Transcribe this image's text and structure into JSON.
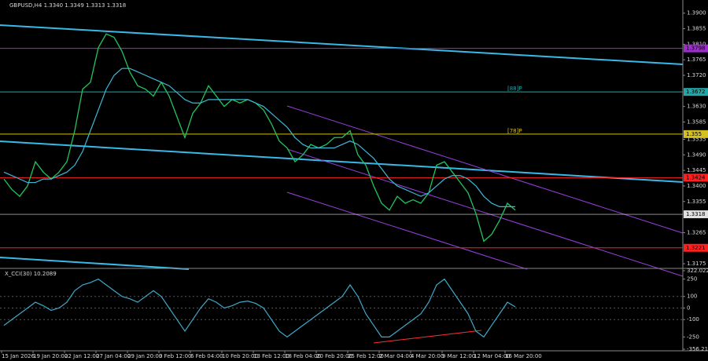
{
  "chart_data": [
    {
      "type": "line",
      "title": "GBPUSD,H4  1.3340 1.3349 1.3313 1.3318",
      "ylim": [
        1.3166,
        1.3938
      ],
      "yticks": [
        {
          "value": 1.39,
          "label": "1.3900"
        },
        {
          "value": 1.3855,
          "label": "1.3855"
        },
        {
          "value": 1.381,
          "label": "1.3810"
        },
        {
          "value": 1.3765,
          "label": "1.3765"
        },
        {
          "value": 1.372,
          "label": "1.3720"
        },
        {
          "value": 1.363,
          "label": "1.3630"
        },
        {
          "value": 1.3585,
          "label": "1.3585"
        },
        {
          "value": 1.3535,
          "label": "1.3535"
        },
        {
          "value": 1.349,
          "label": "1.3490"
        },
        {
          "value": 1.3445,
          "label": "1.3445"
        },
        {
          "value": 1.34,
          "label": "1.3400"
        },
        {
          "value": 1.3355,
          "label": "1.3355"
        },
        {
          "value": 1.3265,
          "label": "1.3265"
        },
        {
          "value": 1.3175,
          "label": "1.3175"
        }
      ],
      "series": [
        {
          "color": "#22c55e",
          "values": [
            1.342,
            1.339,
            1.337,
            1.34,
            1.347,
            1.344,
            1.342,
            1.344,
            1.347,
            1.356,
            1.368,
            1.37,
            1.38,
            1.384,
            1.383,
            1.379,
            1.373,
            1.369,
            1.368,
            1.366,
            1.37,
            1.366,
            1.36,
            1.354,
            1.361,
            1.364,
            1.369,
            1.366,
            1.363,
            1.365,
            1.364,
            1.365,
            1.364,
            1.362,
            1.358,
            1.353,
            1.351,
            1.347,
            1.349,
            1.352,
            1.351,
            1.352,
            1.354,
            1.354,
            1.356,
            1.349,
            1.346,
            1.34,
            1.335,
            1.333,
            1.337,
            1.335,
            1.336,
            1.335,
            1.338,
            1.346,
            1.347,
            1.344,
            1.341,
            1.338,
            1.332,
            1.324,
            1.326,
            1.33,
            1.335,
            1.333
          ]
        },
        {
          "color": "#3fb8d8",
          "values": [
            1.344,
            1.343,
            1.342,
            1.341,
            1.341,
            1.342,
            1.342,
            1.343,
            1.344,
            1.346,
            1.35,
            1.356,
            1.362,
            1.368,
            1.372,
            1.374,
            1.374,
            1.373,
            1.372,
            1.371,
            1.37,
            1.369,
            1.367,
            1.365,
            1.364,
            1.364,
            1.365,
            1.365,
            1.365,
            1.365,
            1.365,
            1.365,
            1.364,
            1.363,
            1.361,
            1.359,
            1.357,
            1.354,
            1.352,
            1.351,
            1.351,
            1.351,
            1.351,
            1.352,
            1.353,
            1.352,
            1.35,
            1.348,
            1.345,
            1.342,
            1.34,
            1.339,
            1.338,
            1.337,
            1.338,
            1.34,
            1.342,
            1.343,
            1.343,
            1.342,
            1.34,
            1.337,
            1.335,
            1.334,
            1.334,
            1.334
          ]
        }
      ],
      "levels": [
        {
          "value": 1.3798,
          "color": "#9b30c8"
        },
        {
          "value": 1.3672,
          "color": "#20a8a8",
          "tag": "[88]P"
        },
        {
          "value": 1.355,
          "color": "#d4c020",
          "tag": "[78]P"
        },
        {
          "value": 1.3424,
          "color": "#ff2020"
        },
        {
          "value": 1.3318,
          "color": "#e0e0e0"
        },
        {
          "value": 1.3221,
          "color": "#ff2020"
        }
      ]
    },
    {
      "type": "line",
      "title": "X_CCI(30) 10.2089",
      "ylim": [
        -356.2134,
        322.0224
      ],
      "yticks": [
        322.0224,
        250,
        100,
        0,
        -100,
        -250,
        -356.2134
      ],
      "series": [
        {
          "color": "#3fa8c8",
          "values": [
            -150,
            -100,
            -50,
            0,
            50,
            20,
            -20,
            0,
            50,
            150,
            200,
            220,
            250,
            200,
            150,
            100,
            80,
            50,
            100,
            150,
            100,
            0,
            -100,
            -200,
            -100,
            0,
            80,
            50,
            0,
            20,
            50,
            60,
            40,
            0,
            -100,
            -200,
            -250,
            -200,
            -150,
            -100,
            -50,
            0,
            50,
            100,
            200,
            100,
            -50,
            -150,
            -250,
            -250,
            -200,
            -150,
            -100,
            -50,
            50,
            200,
            250,
            150,
            50,
            -50,
            -200,
            -250,
            -150,
            -50,
            50,
            10
          ]
        }
      ],
      "x_tick_labels": [
        "15 Jan 2026",
        "19 Jan 20:00",
        "22 Jan 12:00",
        "27 Jan 04:00",
        "29 Jan 20:00",
        "3 Feb 12:00",
        "6 Feb 04:00",
        "10 Feb 20:00",
        "13 Feb 12:00",
        "18 Feb 04:00",
        "20 Feb 20:00",
        "25 Feb 12:00",
        "2 Mar 04:00",
        "4 Mar 20:00",
        "9 Mar 12:00",
        "12 Mar 04:00",
        "16 Mar 20:00"
      ]
    }
  ]
}
